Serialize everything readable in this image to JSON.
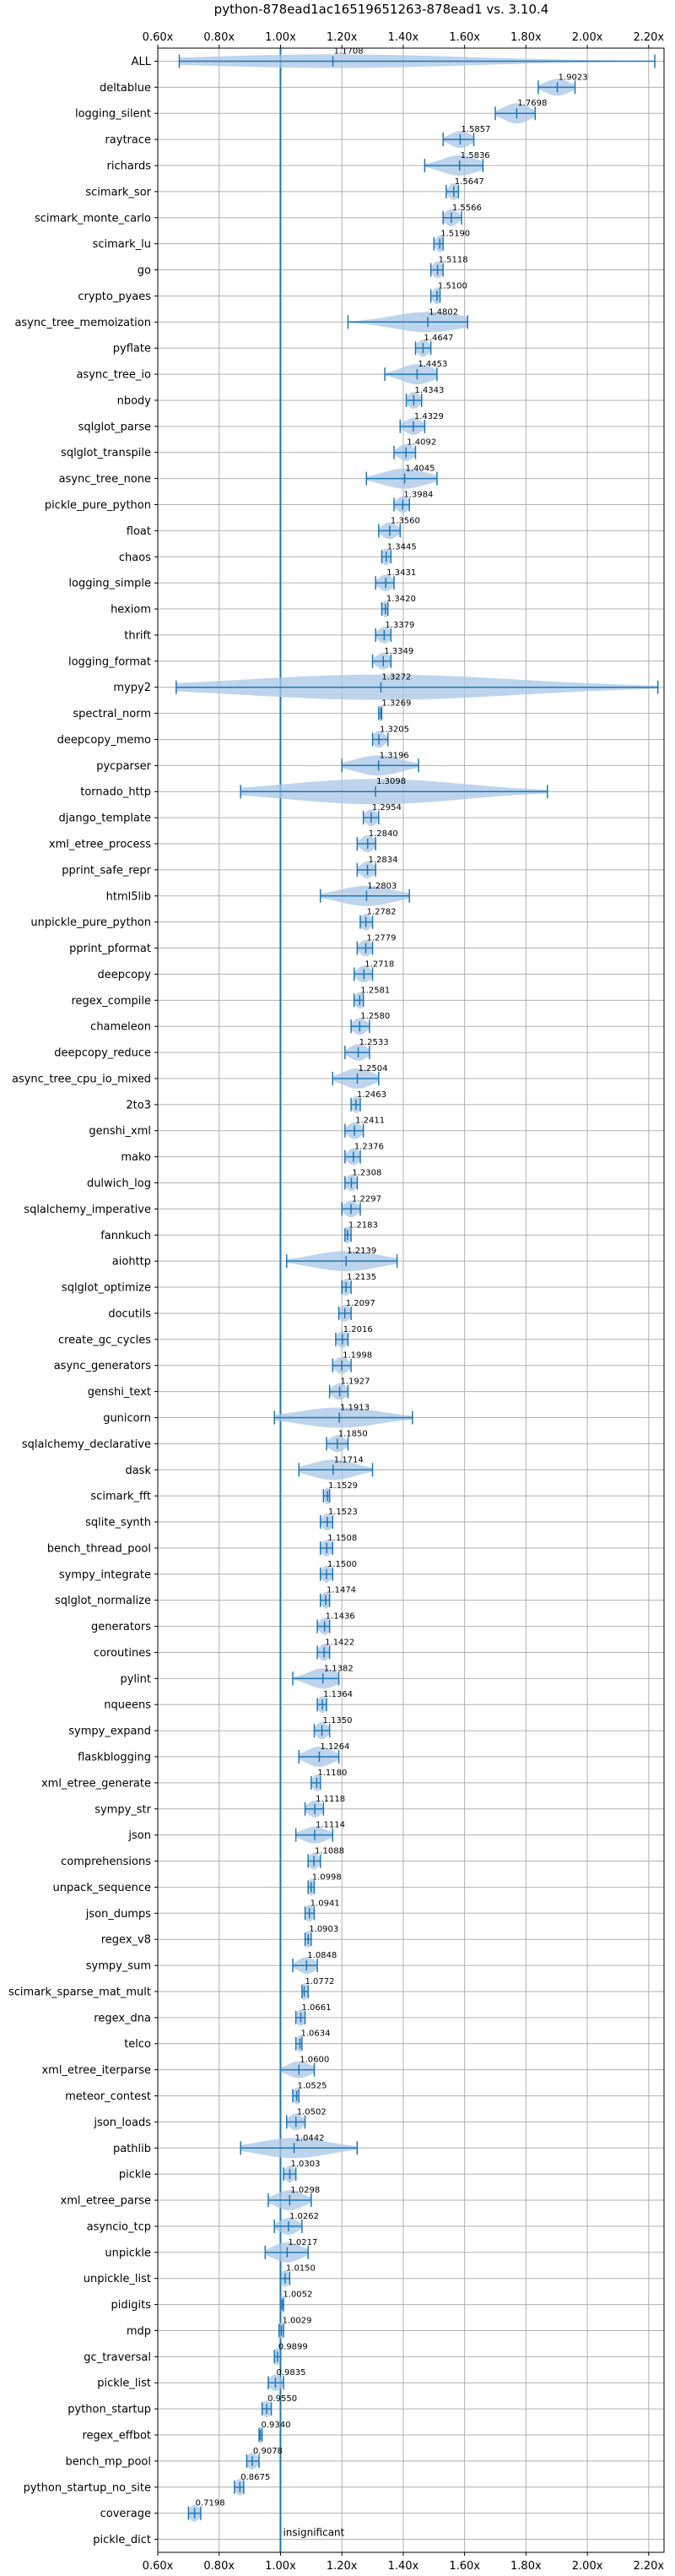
{
  "chart_data": {
    "type": "violin",
    "title": "python-878ead1ac16519651263-878ead1 vs. 3.10.4",
    "xlim": [
      0.6,
      2.25
    ],
    "x_ticks": [
      "0.60x",
      "0.80x",
      "1.00x",
      "1.20x",
      "1.40x",
      "1.60x",
      "1.80x",
      "2.00x",
      "2.20x"
    ],
    "x_tick_values": [
      0.6,
      0.8,
      1.0,
      1.2,
      1.4,
      1.6,
      1.8,
      2.0,
      2.2
    ],
    "reference_line": 1.0,
    "reference_annotation": "insignificant",
    "grid": true,
    "color": "#1f77b4",
    "fill_color": "#a7c6e6",
    "benchmarks": [
      {
        "name": "ALL",
        "value": 1.1708,
        "label": "1.1708",
        "lo": 0.67,
        "hi": 2.22,
        "kind": "all"
      },
      {
        "name": "deltablue",
        "value": 1.9023,
        "label": "1.9023",
        "lo": 1.84,
        "hi": 1.96
      },
      {
        "name": "logging_silent",
        "value": 1.7698,
        "label": "1.7698",
        "lo": 1.7,
        "hi": 1.83
      },
      {
        "name": "raytrace",
        "value": 1.5857,
        "label": "1.5857",
        "lo": 1.53,
        "hi": 1.63
      },
      {
        "name": "richards",
        "value": 1.5836,
        "label": "1.5836",
        "lo": 1.47,
        "hi": 1.66
      },
      {
        "name": "scimark_sor",
        "value": 1.5647,
        "label": "1.5647",
        "lo": 1.54,
        "hi": 1.58
      },
      {
        "name": "scimark_monte_carlo",
        "value": 1.5566,
        "label": "1.5566",
        "lo": 1.53,
        "hi": 1.59
      },
      {
        "name": "scimark_lu",
        "value": 1.519,
        "label": "1.5190",
        "lo": 1.5,
        "hi": 1.53
      },
      {
        "name": "go",
        "value": 1.5118,
        "label": "1.5118",
        "lo": 1.49,
        "hi": 1.53
      },
      {
        "name": "crypto_pyaes",
        "value": 1.51,
        "label": "1.5100",
        "lo": 1.49,
        "hi": 1.52
      },
      {
        "name": "async_tree_memoization",
        "value": 1.4802,
        "label": "1.4802",
        "lo": 1.22,
        "hi": 1.61
      },
      {
        "name": "pyflate",
        "value": 1.4647,
        "label": "1.4647",
        "lo": 1.44,
        "hi": 1.49
      },
      {
        "name": "async_tree_io",
        "value": 1.4453,
        "label": "1.4453",
        "lo": 1.34,
        "hi": 1.51
      },
      {
        "name": "nbody",
        "value": 1.4343,
        "label": "1.4343",
        "lo": 1.41,
        "hi": 1.46
      },
      {
        "name": "sqlglot_parse",
        "value": 1.4329,
        "label": "1.4329",
        "lo": 1.39,
        "hi": 1.47
      },
      {
        "name": "sqlglot_transpile",
        "value": 1.4092,
        "label": "1.4092",
        "lo": 1.37,
        "hi": 1.44
      },
      {
        "name": "async_tree_none",
        "value": 1.4045,
        "label": "1.4045",
        "lo": 1.28,
        "hi": 1.51
      },
      {
        "name": "pickle_pure_python",
        "value": 1.3984,
        "label": "1.3984",
        "lo": 1.37,
        "hi": 1.42
      },
      {
        "name": "float",
        "value": 1.356,
        "label": "1.3560",
        "lo": 1.32,
        "hi": 1.39
      },
      {
        "name": "chaos",
        "value": 1.3445,
        "label": "1.3445",
        "lo": 1.33,
        "hi": 1.36
      },
      {
        "name": "logging_simple",
        "value": 1.3431,
        "label": "1.3431",
        "lo": 1.31,
        "hi": 1.37
      },
      {
        "name": "hexiom",
        "value": 1.342,
        "label": "1.3420",
        "lo": 1.33,
        "hi": 1.35
      },
      {
        "name": "thrift",
        "value": 1.3379,
        "label": "1.3379",
        "lo": 1.31,
        "hi": 1.36
      },
      {
        "name": "logging_format",
        "value": 1.3349,
        "label": "1.3349",
        "lo": 1.3,
        "hi": 1.36
      },
      {
        "name": "mypy2",
        "value": 1.3272,
        "label": "1.3272",
        "lo": 0.66,
        "hi": 2.23,
        "kind": "wide"
      },
      {
        "name": "spectral_norm",
        "value": 1.3269,
        "label": "1.3269",
        "lo": 1.32,
        "hi": 1.33
      },
      {
        "name": "deepcopy_memo",
        "value": 1.3205,
        "label": "1.3205",
        "lo": 1.3,
        "hi": 1.35
      },
      {
        "name": "pycparser",
        "value": 1.3196,
        "label": "1.3196",
        "lo": 1.2,
        "hi": 1.45
      },
      {
        "name": "tornado_http",
        "value": 1.3098,
        "label": "1.3098",
        "lo": 0.87,
        "hi": 1.87,
        "kind": "wide"
      },
      {
        "name": "django_template",
        "value": 1.2954,
        "label": "1.2954",
        "lo": 1.27,
        "hi": 1.32
      },
      {
        "name": "xml_etree_process",
        "value": 1.284,
        "label": "1.2840",
        "lo": 1.25,
        "hi": 1.31
      },
      {
        "name": "pprint_safe_repr",
        "value": 1.2834,
        "label": "1.2834",
        "lo": 1.25,
        "hi": 1.31
      },
      {
        "name": "html5lib",
        "value": 1.2803,
        "label": "1.2803",
        "lo": 1.13,
        "hi": 1.42
      },
      {
        "name": "unpickle_pure_python",
        "value": 1.2782,
        "label": "1.2782",
        "lo": 1.26,
        "hi": 1.3
      },
      {
        "name": "pprint_pformat",
        "value": 1.2779,
        "label": "1.2779",
        "lo": 1.25,
        "hi": 1.3
      },
      {
        "name": "deepcopy",
        "value": 1.2718,
        "label": "1.2718",
        "lo": 1.24,
        "hi": 1.3
      },
      {
        "name": "regex_compile",
        "value": 1.2581,
        "label": "1.2581",
        "lo": 1.24,
        "hi": 1.27
      },
      {
        "name": "chameleon",
        "value": 1.258,
        "label": "1.2580",
        "lo": 1.23,
        "hi": 1.29
      },
      {
        "name": "deepcopy_reduce",
        "value": 1.2533,
        "label": "1.2533",
        "lo": 1.21,
        "hi": 1.29
      },
      {
        "name": "async_tree_cpu_io_mixed",
        "value": 1.2504,
        "label": "1.2504",
        "lo": 1.17,
        "hi": 1.32
      },
      {
        "name": "2to3",
        "value": 1.2463,
        "label": "1.2463",
        "lo": 1.23,
        "hi": 1.26
      },
      {
        "name": "genshi_xml",
        "value": 1.2411,
        "label": "1.2411",
        "lo": 1.21,
        "hi": 1.27
      },
      {
        "name": "mako",
        "value": 1.2376,
        "label": "1.2376",
        "lo": 1.21,
        "hi": 1.26
      },
      {
        "name": "dulwich_log",
        "value": 1.2308,
        "label": "1.2308",
        "lo": 1.21,
        "hi": 1.25
      },
      {
        "name": "sqlalchemy_imperative",
        "value": 1.2297,
        "label": "1.2297",
        "lo": 1.2,
        "hi": 1.26
      },
      {
        "name": "fannkuch",
        "value": 1.2183,
        "label": "1.2183",
        "lo": 1.21,
        "hi": 1.23
      },
      {
        "name": "aiohttp",
        "value": 1.2139,
        "label": "1.2139",
        "lo": 1.02,
        "hi": 1.38
      },
      {
        "name": "sqlglot_optimize",
        "value": 1.2135,
        "label": "1.2135",
        "lo": 1.2,
        "hi": 1.23
      },
      {
        "name": "docutils",
        "value": 1.2097,
        "label": "1.2097",
        "lo": 1.19,
        "hi": 1.23
      },
      {
        "name": "create_gc_cycles",
        "value": 1.2016,
        "label": "1.2016",
        "lo": 1.18,
        "hi": 1.22
      },
      {
        "name": "async_generators",
        "value": 1.1998,
        "label": "1.1998",
        "lo": 1.17,
        "hi": 1.23
      },
      {
        "name": "genshi_text",
        "value": 1.1927,
        "label": "1.1927",
        "lo": 1.16,
        "hi": 1.22
      },
      {
        "name": "gunicorn",
        "value": 1.1913,
        "label": "1.1913",
        "lo": 0.98,
        "hi": 1.43
      },
      {
        "name": "sqlalchemy_declarative",
        "value": 1.185,
        "label": "1.1850",
        "lo": 1.15,
        "hi": 1.22
      },
      {
        "name": "dask",
        "value": 1.1714,
        "label": "1.1714",
        "lo": 1.06,
        "hi": 1.3
      },
      {
        "name": "scimark_fft",
        "value": 1.1529,
        "label": "1.1529",
        "lo": 1.14,
        "hi": 1.16
      },
      {
        "name": "sqlite_synth",
        "value": 1.1523,
        "label": "1.1523",
        "lo": 1.13,
        "hi": 1.17
      },
      {
        "name": "bench_thread_pool",
        "value": 1.1508,
        "label": "1.1508",
        "lo": 1.13,
        "hi": 1.17
      },
      {
        "name": "sympy_integrate",
        "value": 1.15,
        "label": "1.1500",
        "lo": 1.13,
        "hi": 1.17
      },
      {
        "name": "sqlglot_normalize",
        "value": 1.1474,
        "label": "1.1474",
        "lo": 1.13,
        "hi": 1.16
      },
      {
        "name": "generators",
        "value": 1.1436,
        "label": "1.1436",
        "lo": 1.12,
        "hi": 1.16
      },
      {
        "name": "coroutines",
        "value": 1.1422,
        "label": "1.1422",
        "lo": 1.12,
        "hi": 1.16
      },
      {
        "name": "pylint",
        "value": 1.1382,
        "label": "1.1382",
        "lo": 1.04,
        "hi": 1.19
      },
      {
        "name": "nqueens",
        "value": 1.1364,
        "label": "1.1364",
        "lo": 1.12,
        "hi": 1.15
      },
      {
        "name": "sympy_expand",
        "value": 1.135,
        "label": "1.1350",
        "lo": 1.11,
        "hi": 1.16
      },
      {
        "name": "flaskblogging",
        "value": 1.1264,
        "label": "1.1264",
        "lo": 1.06,
        "hi": 1.19
      },
      {
        "name": "xml_etree_generate",
        "value": 1.118,
        "label": "1.1180",
        "lo": 1.1,
        "hi": 1.13
      },
      {
        "name": "sympy_str",
        "value": 1.1118,
        "label": "1.1118",
        "lo": 1.08,
        "hi": 1.14
      },
      {
        "name": "json",
        "value": 1.1114,
        "label": "1.1114",
        "lo": 1.05,
        "hi": 1.17
      },
      {
        "name": "comprehensions",
        "value": 1.1088,
        "label": "1.1088",
        "lo": 1.09,
        "hi": 1.13
      },
      {
        "name": "unpack_sequence",
        "value": 1.0998,
        "label": "1.0998",
        "lo": 1.09,
        "hi": 1.11
      },
      {
        "name": "json_dumps",
        "value": 1.0941,
        "label": "1.0941",
        "lo": 1.08,
        "hi": 1.11
      },
      {
        "name": "regex_v8",
        "value": 1.0903,
        "label": "1.0903",
        "lo": 1.08,
        "hi": 1.1
      },
      {
        "name": "sympy_sum",
        "value": 1.0848,
        "label": "1.0848",
        "lo": 1.04,
        "hi": 1.12
      },
      {
        "name": "scimark_sparse_mat_mult",
        "value": 1.0772,
        "label": "1.0772",
        "lo": 1.07,
        "hi": 1.09
      },
      {
        "name": "regex_dna",
        "value": 1.0661,
        "label": "1.0661",
        "lo": 1.05,
        "hi": 1.08
      },
      {
        "name": "telco",
        "value": 1.0634,
        "label": "1.0634",
        "lo": 1.05,
        "hi": 1.07
      },
      {
        "name": "xml_etree_iterparse",
        "value": 1.06,
        "label": "1.0600",
        "lo": 1.0,
        "hi": 1.11
      },
      {
        "name": "meteor_contest",
        "value": 1.0525,
        "label": "1.0525",
        "lo": 1.04,
        "hi": 1.06
      },
      {
        "name": "json_loads",
        "value": 1.0502,
        "label": "1.0502",
        "lo": 1.02,
        "hi": 1.08
      },
      {
        "name": "pathlib",
        "value": 1.0442,
        "label": "1.0442",
        "lo": 0.87,
        "hi": 1.25
      },
      {
        "name": "pickle",
        "value": 1.0303,
        "label": "1.0303",
        "lo": 1.01,
        "hi": 1.05
      },
      {
        "name": "xml_etree_parse",
        "value": 1.0298,
        "label": "1.0298",
        "lo": 0.96,
        "hi": 1.1
      },
      {
        "name": "asyncio_tcp",
        "value": 1.0262,
        "label": "1.0262",
        "lo": 0.98,
        "hi": 1.07
      },
      {
        "name": "unpickle",
        "value": 1.0217,
        "label": "1.0217",
        "lo": 0.95,
        "hi": 1.09
      },
      {
        "name": "unpickle_list",
        "value": 1.015,
        "label": "1.0150",
        "lo": 1.0,
        "hi": 1.03
      },
      {
        "name": "pidigits",
        "value": 1.0052,
        "label": "1.0052",
        "lo": 1.0,
        "hi": 1.01
      },
      {
        "name": "mdp",
        "value": 1.0029,
        "label": "1.0029",
        "lo": 0.995,
        "hi": 1.01
      },
      {
        "name": "gc_traversal",
        "value": 0.9899,
        "label": "0.9899",
        "lo": 0.98,
        "hi": 1.0
      },
      {
        "name": "pickle_list",
        "value": 0.9835,
        "label": "0.9835",
        "lo": 0.96,
        "hi": 1.01
      },
      {
        "name": "python_startup",
        "value": 0.955,
        "label": "0.9550",
        "lo": 0.94,
        "hi": 0.97
      },
      {
        "name": "regex_effbot",
        "value": 0.934,
        "label": "0.9340",
        "lo": 0.93,
        "hi": 0.94
      },
      {
        "name": "bench_mp_pool",
        "value": 0.9078,
        "label": "0.9078",
        "lo": 0.89,
        "hi": 0.93
      },
      {
        "name": "python_startup_no_site",
        "value": 0.8675,
        "label": "0.8675",
        "lo": 0.85,
        "hi": 0.88
      },
      {
        "name": "coverage",
        "value": 0.7198,
        "label": "0.7198",
        "lo": 0.7,
        "hi": 0.74
      },
      {
        "name": "pickle_dict",
        "value": 1.0,
        "label": "",
        "lo": 1.0,
        "hi": 1.0,
        "kind": "insignificant"
      }
    ]
  }
}
